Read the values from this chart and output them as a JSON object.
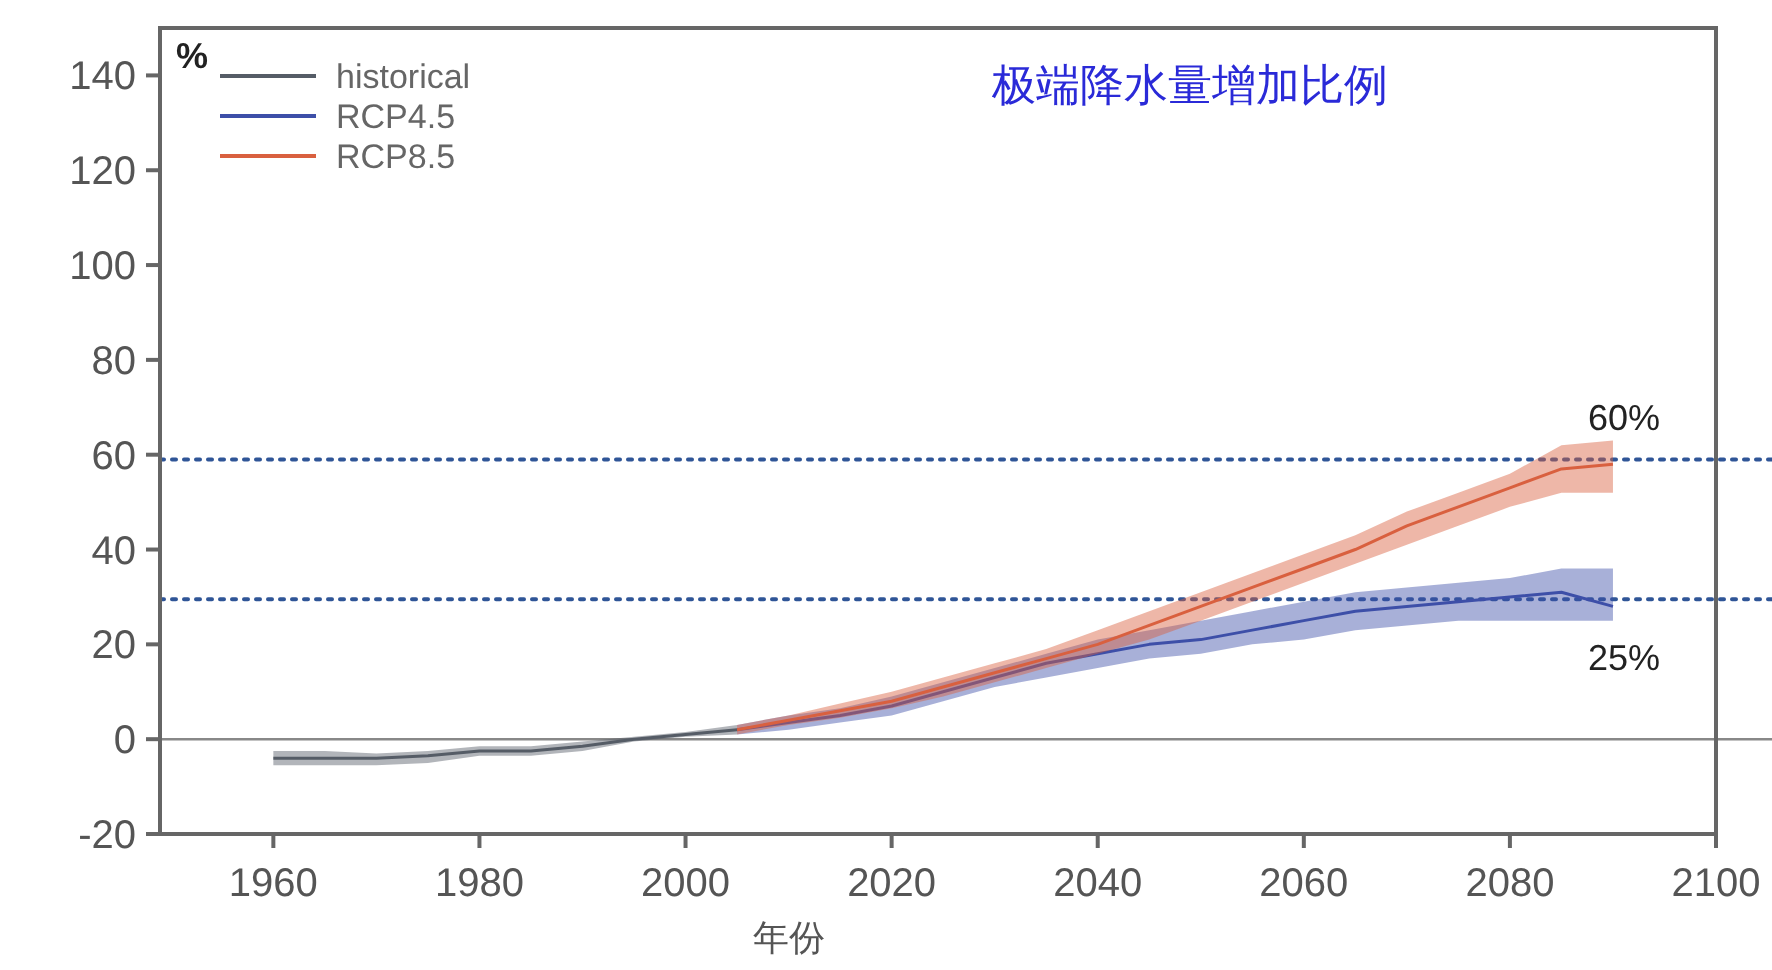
{
  "chart_data": {
    "type": "line",
    "title": "极端降水量增加比例",
    "xlabel": "年份",
    "ylabel": "%",
    "series": [
      {
        "name": "historical",
        "color": "#555c66",
        "x": [
          1960,
          1965,
          1970,
          1975,
          1980,
          1985,
          1990,
          1995,
          2000,
          2005
        ],
        "values": [
          -4,
          -4,
          -4,
          -3.5,
          -2.5,
          -2.5,
          -1.5,
          0,
          1,
          2
        ],
        "lower": [
          -5.5,
          -5.5,
          -5.5,
          -5,
          -3.5,
          -3.5,
          -2.5,
          -0.5,
          0.5,
          1
        ],
        "upper": [
          -2.5,
          -2.5,
          -3,
          -2.5,
          -1.5,
          -1.5,
          -0.5,
          0.5,
          1.5,
          3
        ]
      },
      {
        "name": "RCP4.5",
        "color": "#3d4fa8",
        "x": [
          2005,
          2010,
          2015,
          2020,
          2025,
          2030,
          2035,
          2040,
          2045,
          2050,
          2055,
          2060,
          2065,
          2070,
          2075,
          2080,
          2085,
          2090
        ],
        "values": [
          2,
          3.5,
          5,
          7,
          10,
          13,
          16,
          18,
          20,
          21,
          23,
          25,
          27,
          28,
          29,
          30,
          31,
          28
        ],
        "lower": [
          1,
          2,
          3.5,
          5,
          8,
          11,
          13,
          15,
          17,
          18,
          20,
          21,
          23,
          24,
          25,
          25,
          25,
          25
        ],
        "upper": [
          3,
          5,
          6.5,
          9,
          12,
          15,
          18,
          21,
          23,
          25,
          27,
          29,
          31,
          32,
          33,
          34,
          36,
          36
        ]
      },
      {
        "name": "RCP8.5",
        "color": "#d9603f",
        "x": [
          2005,
          2010,
          2015,
          2020,
          2025,
          2030,
          2035,
          2040,
          2045,
          2050,
          2055,
          2060,
          2065,
          2070,
          2075,
          2080,
          2085,
          2090
        ],
        "values": [
          2,
          4,
          6,
          8,
          11,
          14,
          17,
          20,
          24,
          28,
          32,
          36,
          40,
          45,
          49,
          53,
          57,
          58
        ],
        "lower": [
          1,
          3,
          4.5,
          6.5,
          9,
          12,
          15,
          18,
          21,
          25,
          29,
          33,
          37,
          41,
          45,
          49,
          52,
          52
        ],
        "upper": [
          3,
          5,
          7.5,
          10,
          13,
          16,
          19,
          23,
          27,
          31,
          35,
          39,
          43,
          48,
          52,
          56,
          62,
          63
        ]
      }
    ],
    "xlim": [
      1949,
      2100
    ],
    "ylim": [
      -20,
      150
    ],
    "xticks": [
      1960,
      1980,
      2000,
      2020,
      2040,
      2060,
      2080,
      2100
    ],
    "yticks": [
      -20,
      0,
      20,
      40,
      60,
      80,
      100,
      120,
      140
    ],
    "ref_lines": [
      {
        "axis": "y",
        "value": 0,
        "color": "#888888",
        "line_style": "solid"
      },
      {
        "axis": "y",
        "value": 59,
        "color": "#2f5597",
        "line_style": "dotted"
      },
      {
        "axis": "y",
        "value": 29.5,
        "color": "#2f5597",
        "line_style": "dotted"
      }
    ],
    "annotations": [
      "60%",
      "25%"
    ],
    "legend": "top left",
    "grid": false
  }
}
